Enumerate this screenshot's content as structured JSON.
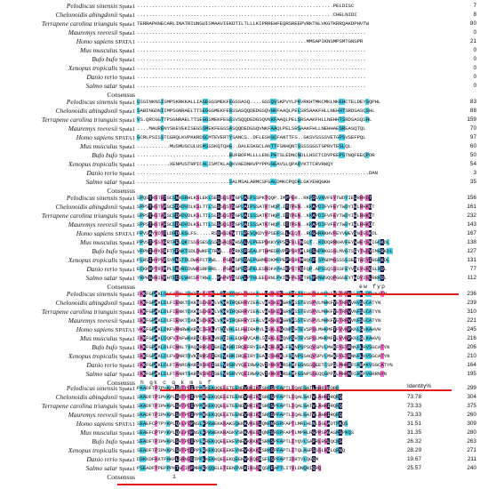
{
  "species": [
    {
      "name": "Pelodiscus sinensis",
      "gene": "Spata1"
    },
    {
      "name": "Chelonoidis abingdonii",
      "gene": "Spata1"
    },
    {
      "name": "Terrapene carolina triunguis",
      "gene": "Spata1"
    },
    {
      "name": "Mauremys reevesii",
      "gene": "Spata1"
    },
    {
      "name": "Homo sapiens",
      "gene": "SPATA1"
    },
    {
      "name": "Mus musculus",
      "gene": "Spata1"
    },
    {
      "name": "Bufo bufo",
      "gene": "Spata1"
    },
    {
      "name": "Xenopus tropicalis",
      "gene": "Spata1"
    },
    {
      "name": "Danio rerio",
      "gene": "Spata1"
    },
    {
      "name": "Salmo salar",
      "gene": "Spata1"
    }
  ],
  "consensus_label": "Consensus",
  "identity_header": "Identity%",
  "colors": {
    "dark": "#1a1446",
    "magenta": "#f06ac8",
    "cyan": "#48d4ec",
    "red": "#e11d1d"
  },
  "blocks": [
    {
      "rows": [
        {
          "seq": "..................................................................PELDISC",
          "num": "7"
        },
        {
          "seq": "..................................................................CHELNIDI",
          "num": "8"
        },
        {
          "seq": "TERRAPKNECARLINATRIUNGUISMAAVIEKDTILTLLLKIPRREHFEQRSREEPVRKTNLVKGTKRRQAKDPHVTW",
          "num": "80"
        },
        {
          "seq": ".............................................................................",
          "num": "0"
        },
        {
          "seq": ".........................................................MMSAPIKNSMPSMTGNSPR",
          "num": "21"
        },
        {
          "seq": ".............................................................................",
          "num": "0"
        },
        {
          "seq": ".............................................................................",
          "num": "0"
        },
        {
          "seq": ".............................................................................",
          "num": "0"
        },
        {
          "seq": ".............................................................................",
          "num": "0"
        },
        {
          "seq": ".............................................................................",
          "num": "0"
        }
      ],
      "consensus": ""
    },
    {
      "rows": [
        {
          "seq": "USSINKNSISMPSKRKKALLIASEGSSMEKFEGSSASQ....GSSQVSKPVYLPKVRKHTMKCMKLNKEHCTELDEYSQPHL",
          "num": "83"
        },
        {
          "seq": "SABINGDNIIMPSGNRAELTTSEGGSMEKFEGSSASQQDEDGSQVNKFAAQLPELSRSAAKFHLLNEHHTSRDSASQSHL",
          "num": "88"
        },
        {
          "seq": "VS.QRCGGTTPSGNRAELTTSEGGSMEKFEGSSVSQQDEDGSQVNKFAAQLPELSRSAAKFHLLNEHHTSRDSASQSHL",
          "num": "159"
        },
        {
          "seq": "....MAURENYSKEVEKISEGSSMEKFEGSSASQQDEDGSQVNKFAAQLPELSRSAAKFHLLNEHHAESREASQTQL",
          "num": "70"
        },
        {
          "seq": "GCRLPSISSTCGRQLKVPKKRDSCMTEVERTYSANCS..DFLESKGCFANTTFS..GKSVSSSSVETGPSVSEFPQL",
          "num": "97"
        },
        {
          "seq": "...........MUSMUSCULUSMSSSKQTQHG..DALESKGCLANTTFSNHQNTSSSSSGSTGPRVTESLQL",
          "num": "60"
        },
        {
          "seq": "...............................BUFBOFMLLLLENLPHTSLEDNCNDLLHSCTCDVPEEPSTNQFEEQPDR",
          "num": "50"
        },
        {
          "seq": "...........XENPUSTRPICALISMTKLAQKVAEDNKVPYPPGGEAVSLQPADYKTTCRVRHQY",
          "num": "54"
        },
        {
          "seq": "..............................................................................DAN",
          "num": "3"
        },
        {
          "seq": "...............................SALMSALARMCSFGALDMKCPQDKLGKYEHQGKH",
          "num": "35"
        }
      ],
      "consensus": ""
    },
    {
      "rows": [
        {
          "seq": "SPQSTRSTETSCSNRSRHLKSLEKLSESSQSTRGPLAEPSSPKTQQP.IMPPEK..RKPDSVNVFEYTWDYIELRRKDT",
          "num": "156"
        },
        {
          "seq": "SPPSTHSTVPSCSDRDVDLKSLTTLSLSSQSTSGPLAIPSSATKTHQP.ITTPEN..KKAPDIFVFEYTWDYIELRRKDT",
          "num": "161"
        },
        {
          "seq": "SPPSTHSTAPSCSDRDVDLKSLTTLSLSSQSTSGPLAISSSATKTHQP.ITTPEN..KKAPDIFVFEYTWDYIELRRKDT",
          "num": "232"
        },
        {
          "seq": "SPPSTHSTAPSCSDRDVDLKSLTTLSLSSQSTSGPLAISSSATKTHQP.ITTPEN..KKAPDIFVFEYTWDYIELRRKDT",
          "num": "143"
        },
        {
          "seq": "PPVSAYVDTTLDRDLKSLFS.....RSDHSDEVTTLPEVQKDYYPSEFSLLKLQT..RDGHRRKHVFEYVWEYSNIGCKDL",
          "num": "167"
        },
        {
          "seq": "PPVSTPSSTGRTAELQKTSSSSESSSSSSAQSNHSVLVLPEEPQKKYVPSEFSLLNSQT..KDDQRRKHVFEYVWEYSNIGCKDL",
          "num": "138"
        },
        {
          "seq": "VFPNIHYKSRFTYPNKTSDLDWKFCTRWL..PGRKSPSDALPTHMEDKVPPPSRTMLRQSNPRKGSSLMVGTSEYTWDYIMGRKDL",
          "num": "127"
        },
        {
          "seq": "PLRSIHYPVPSYPNSTDLDWKFCTRWL..PGRKSPSDALPGHMEDKMFPEPRSRLMRQGP.SPGDMGSSSSSEYTWDYIRGRKDL",
          "num": "131"
        },
        {
          "seq": "ECKKRPTRIMPLSRVRCDVWKSRFRRL..PGRKSPSDSPKLESNDFAYAIFPSTRQFQP.APSSQSSSSFEYVSEYGRQSLRDL",
          "num": "77"
        },
        {
          "seq": "YRPHGRHIEPHTECDLWRCSFTRWL..PAPRYSSDALPTHLEELRNLPKIEFPESSTRLPRNWSQQPGGSEYTWDYIGLRRKDL",
          "num": "112"
        }
      ],
      "consensus": "ew fyp"
    },
    {
      "rows": [
        {
          "seq": "IKKFGPAKLDLFAGNLTVKRRSCIEKLVKHRIRQELRYIKALVHQRKLFGKNRSTAEVCPVVMHKFYETRNNFVSKGVRHKAFN",
          "num": "236"
        },
        {
          "seq": "IKKFGPAKLDLFIENKTCKKRSCKEKLVKHRIRQERRYIEALVHRSKLFGRNPSSTEVSPVLMHKFYETRPVVRVSGCATYN",
          "num": "239"
        },
        {
          "seq": "IKKFGPAKLDLFIENKTCKKRSCKEKLVKHRIRQERRYIEALVHRSKLFGRNPSSTEVSPVLMHKFYETRPVVNFSGCATYN",
          "num": "310"
        },
        {
          "seq": "IKKFGPAKLDLFIENKTCKKRSCKEKLVKHRIRQERRYIEALVHRSKLFGRNPSSTEVSPVLMHKFYETRPVVNFSGCATYN",
          "num": "221"
        },
        {
          "seq": "VKMFGPAKLDKFVMNRWKKRNCIEKLVTHQVHLELRWIRAMVLESKLLGKNPSHTEVSPSLMHKMFTPVVNPKNLSVKAHVH",
          "num": "245"
        },
        {
          "seq": "IKMFGPAKLDQFVTNFWKKRSCKEKLVKHQIHLEQRWVCAMLSQRKLLGQNPSHTEVSPSLMHKMFTLVVNPKNLSLKAHVQ",
          "num": "216"
        },
        {
          "seq": "IKKFGPAKLDLFCNNLTVKQKRRSCIEKLVKHRIRQEFRYIEALIRLRKLFGKNPSPSQVSPVLMHKFYETRNNFLRVSGCATYN",
          "num": "206"
        },
        {
          "seq": "IKKFGPAKLDLFVQNRTDVKQRRSCIEKLVKHRIRQEIRYIEALISHRKLFGRNPSSAQVSPVLMHKFYETRNNFLKVSGCATYN",
          "num": "210"
        },
        {
          "seq": "IKKFGPAKLDLFTANRSNKRSRIRCISELVRSRVYQEIRWVQVTYRKYLRSHMFGSNSSQEETCSPSLMHKRFSRRAKVSGCATYN",
          "num": "164"
        },
        {
          "seq": "IKKFGPAKLDLFTANRTSKRSRIRCISELVRSRVYQEIRWVQVTYRKYLRSHMFGSNPSSEQQSPPVLMHKNFSRMPVGRRNYN",
          "num": "195"
        }
      ],
      "consensus": "h gk c          q k            m s f"
    },
    {
      "rows": [
        {
          "seq": "PKADFTPIPHKPLSRTPCIPPMRKEKQQELETEENDVRKIKGSRQSPFAPTLIQAFGATLAHRIRQRQ",
          "num": "299",
          "identity": ""
        },
        {
          "seq": "SKADFTPIPHKPLSRTPCIPPMRKEKQQELETEENDVRKIKGSRQSPFAPTLIQALGATVLAHRIRQRQ",
          "num": "304",
          "identity": "73.78"
        },
        {
          "seq": "SKADFTPIPHKPLSRTPCIPPMRKEKQQELETEENDVRKIKGSRQSPFAPTLIQALGATVLAHRIRQRQ",
          "num": "375",
          "identity": "73.33"
        },
        {
          "seq": "SKADFTPIPHKPLSRTPCIPPMRKEKQQELETEENDVRKIKGSRQSPFAPTLIQALGATVLAHRIRQRQ",
          "num": "260",
          "identity": "73.33"
        },
        {
          "seq": "SEAEFCPTPYKPLQKLPIPNSLFPKWEKKKAKSQEKKVKESLQNFNRSPFAPTLMRLHLNLSGLADTPKQS",
          "num": "309",
          "identity": "31.51"
        },
        {
          "seq": "SEAEFCPTPYKPLQKLPIPNSLFPKWEKKKASKVSKKVKESLQNFSRSPFAPTLMPHLRGPPSPGASMSPKQS",
          "num": "280",
          "identity": "31.35"
        },
        {
          "seq": "SEADFTPIPHKPLSRTPCIPPLRREKQQELEKEVNEVKKKKGSRKSPFAPTLIYQVLSAPRLRGLQCNS",
          "num": "263",
          "identity": "26.32"
        },
        {
          "seq": "SEADFTPIPHKPLSRTPCIPPLRKEKQQELEKEVNEVKKKKGSRKSPFAPTLITQLAGPSSSLRGLQRNQ",
          "num": "271",
          "identity": "28.29"
        },
        {
          "seq": "DGKKDFKKTPHKPLSRNSCTPPLKEKKQELEKQEEKVKKQRRSFLSPFAPTIDRTVLQGQM",
          "num": "211",
          "identity": "19.67"
        },
        {
          "seq": "PSEADFTPEPPPKTGCIPPMRKEKQQELETEENDVRKIKGSRQSPFAPTLITVLDNQRIQRQ",
          "num": "240",
          "identity": "25.57"
        }
      ],
      "consensus": "1"
    }
  ]
}
